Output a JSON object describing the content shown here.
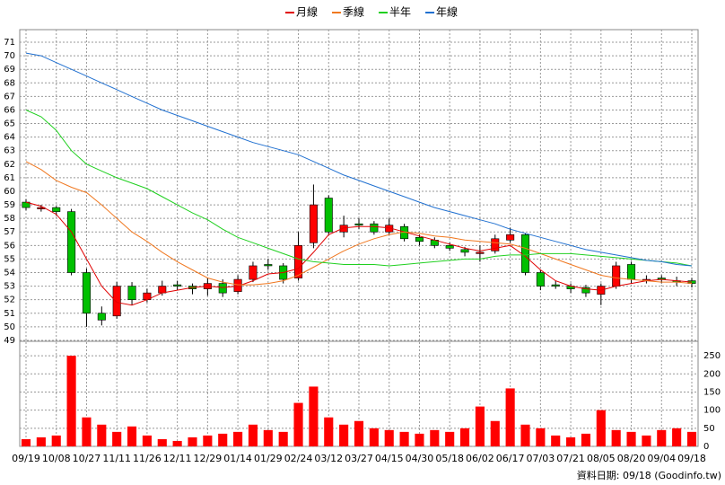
{
  "chart_data": [
    {
      "type": "candlestick",
      "up_color": "#ff0000",
      "down_color": "#00c000",
      "open": [
        59.2,
        58.7,
        58.8,
        58.5,
        54.0,
        51.0,
        50.8,
        53.0,
        52.0,
        52.5,
        53.1,
        53.0,
        52.8,
        53.2,
        52.6,
        53.5,
        54.6,
        54.5,
        53.6,
        56.2,
        59.5,
        57.0,
        57.6,
        57.6,
        57.0,
        57.4,
        56.6,
        56.4,
        56.0,
        55.7,
        55.4,
        55.6,
        56.4,
        56.8,
        54.0,
        53.1,
        53.0,
        52.9,
        52.4,
        53.0,
        54.6,
        53.4,
        53.6,
        53.4,
        53.4
      ],
      "high": [
        59.4,
        59.0,
        58.9,
        58.7,
        54.3,
        51.5,
        53.3,
        53.3,
        52.8,
        53.4,
        53.4,
        53.2,
        53.6,
        53.5,
        53.8,
        54.8,
        55.0,
        54.7,
        57.0,
        60.5,
        59.7,
        58.2,
        58.0,
        57.8,
        58.0,
        57.6,
        56.8,
        56.6,
        56.2,
        55.9,
        56.0,
        56.8,
        57.3,
        56.9,
        54.2,
        53.4,
        53.2,
        53.1,
        53.2,
        54.8,
        54.8,
        53.8,
        53.8,
        53.7,
        53.6
      ],
      "low": [
        58.6,
        58.5,
        58.2,
        53.8,
        50.0,
        50.1,
        50.6,
        51.6,
        51.8,
        52.3,
        52.7,
        52.4,
        52.3,
        52.2,
        52.4,
        53.3,
        54.2,
        53.2,
        53.4,
        55.8,
        56.8,
        56.6,
        57.2,
        56.8,
        56.8,
        56.3,
        56.0,
        55.8,
        55.6,
        55.2,
        54.8,
        55.4,
        56.2,
        53.8,
        52.7,
        52.8,
        52.5,
        52.2,
        51.6,
        52.8,
        53.2,
        53.2,
        53.2,
        53.0,
        52.9
      ],
      "close": [
        58.8,
        58.8,
        58.5,
        54.0,
        51.0,
        50.5,
        53.0,
        52.0,
        52.5,
        53.0,
        53.0,
        52.8,
        53.2,
        52.5,
        53.5,
        54.5,
        54.5,
        53.5,
        56.0,
        59.0,
        57.0,
        57.5,
        57.5,
        57.0,
        57.5,
        56.5,
        56.3,
        56.0,
        55.8,
        55.5,
        55.5,
        56.5,
        56.8,
        54.0,
        53.0,
        53.0,
        52.8,
        52.5,
        53.0,
        54.5,
        53.5,
        53.5,
        53.5,
        53.3,
        53.2
      ],
      "series": [
        {
          "name": "月線",
          "color": "#e00000",
          "values": [
            59.2,
            58.9,
            58.3,
            57.0,
            55.0,
            53.0,
            51.8,
            51.6,
            52.0,
            52.5,
            52.7,
            52.9,
            53.0,
            52.9,
            53.0,
            53.4,
            53.9,
            54.0,
            54.3,
            55.5,
            56.8,
            57.3,
            57.4,
            57.4,
            57.3,
            57.0,
            56.7,
            56.4,
            56.1,
            55.8,
            55.6,
            55.8,
            56.0,
            55.2,
            54.2,
            53.4,
            53.0,
            52.8,
            52.7,
            53.0,
            53.2,
            53.4,
            53.5,
            53.4,
            53.3
          ]
        },
        {
          "name": "季線",
          "color": "#f07820",
          "values": [
            62.2,
            61.6,
            60.8,
            60.3,
            59.9,
            59.0,
            58.0,
            57.0,
            56.3,
            55.5,
            54.8,
            54.2,
            53.6,
            53.3,
            53.1,
            53.1,
            53.2,
            53.4,
            53.8,
            54.4,
            55.0,
            55.6,
            56.1,
            56.5,
            56.8,
            57.0,
            56.9,
            56.7,
            56.6,
            56.4,
            56.3,
            56.2,
            56.1,
            55.8,
            55.4,
            55.0,
            54.6,
            54.2,
            53.8,
            53.6,
            53.5,
            53.4,
            53.3,
            53.3,
            53.2
          ]
        },
        {
          "name": "半年",
          "color": "#20d020",
          "values": [
            66.0,
            65.5,
            64.5,
            63.0,
            62.0,
            61.5,
            61.0,
            60.6,
            60.2,
            59.6,
            59.0,
            58.4,
            57.9,
            57.2,
            56.6,
            56.2,
            55.8,
            55.4,
            55.0,
            54.8,
            54.7,
            54.6,
            54.6,
            54.6,
            54.5,
            54.6,
            54.7,
            54.8,
            54.9,
            55.0,
            55.0,
            55.2,
            55.3,
            55.3,
            55.4,
            55.4,
            55.4,
            55.3,
            55.2,
            55.1,
            55.0,
            54.9,
            54.8,
            54.7,
            54.5
          ]
        },
        {
          "name": "年線",
          "color": "#2070d0",
          "values": [
            70.2,
            70.0,
            69.5,
            69.0,
            68.5,
            68.0,
            67.5,
            67.0,
            66.5,
            66.0,
            65.6,
            65.2,
            64.8,
            64.4,
            64.0,
            63.6,
            63.3,
            63.0,
            62.7,
            62.2,
            61.7,
            61.2,
            60.8,
            60.4,
            60.0,
            59.6,
            59.2,
            58.8,
            58.5,
            58.2,
            57.9,
            57.6,
            57.2,
            56.9,
            56.6,
            56.3,
            56.0,
            55.7,
            55.5,
            55.3,
            55.1,
            54.9,
            54.8,
            54.6,
            54.5
          ]
        }
      ],
      "ylim": [
        48.93,
        71.93
      ],
      "yticks": [
        49,
        50,
        51,
        52,
        53,
        54,
        55,
        56,
        57,
        58,
        59,
        60,
        61,
        62,
        63,
        64,
        65,
        66,
        67,
        68,
        69,
        70,
        71
      ],
      "grid": true
    },
    {
      "type": "bar",
      "color": "#ff0000",
      "categories": [
        "09/19",
        null,
        "10/08",
        null,
        "10/27",
        null,
        "11/11",
        null,
        "11/26",
        null,
        "12/11",
        null,
        "12/29",
        null,
        "01/14",
        null,
        "01/29",
        null,
        "02/24",
        null,
        "03/12",
        null,
        "03/27",
        null,
        "04/15",
        null,
        "04/30",
        null,
        "05/18",
        null,
        "06/02",
        null,
        "06/17",
        null,
        "07/03",
        null,
        "07/21",
        null,
        "08/05",
        null,
        "08/20",
        null,
        "09/04",
        null,
        "09/18"
      ],
      "values": [
        20,
        25,
        30,
        250,
        80,
        60,
        40,
        55,
        30,
        20,
        15,
        25,
        30,
        35,
        40,
        60,
        45,
        40,
        120,
        165,
        80,
        60,
        70,
        50,
        45,
        40,
        35,
        45,
        40,
        50,
        110,
        70,
        160,
        60,
        50,
        30,
        25,
        35,
        100,
        45,
        40,
        30,
        45,
        50,
        40
      ],
      "ylim": [
        0,
        290
      ],
      "yticks": [
        0,
        50,
        100,
        150,
        200,
        250
      ],
      "grid": true,
      "note": "資料日期: 09/18 (Goodinfo.tw)"
    }
  ]
}
